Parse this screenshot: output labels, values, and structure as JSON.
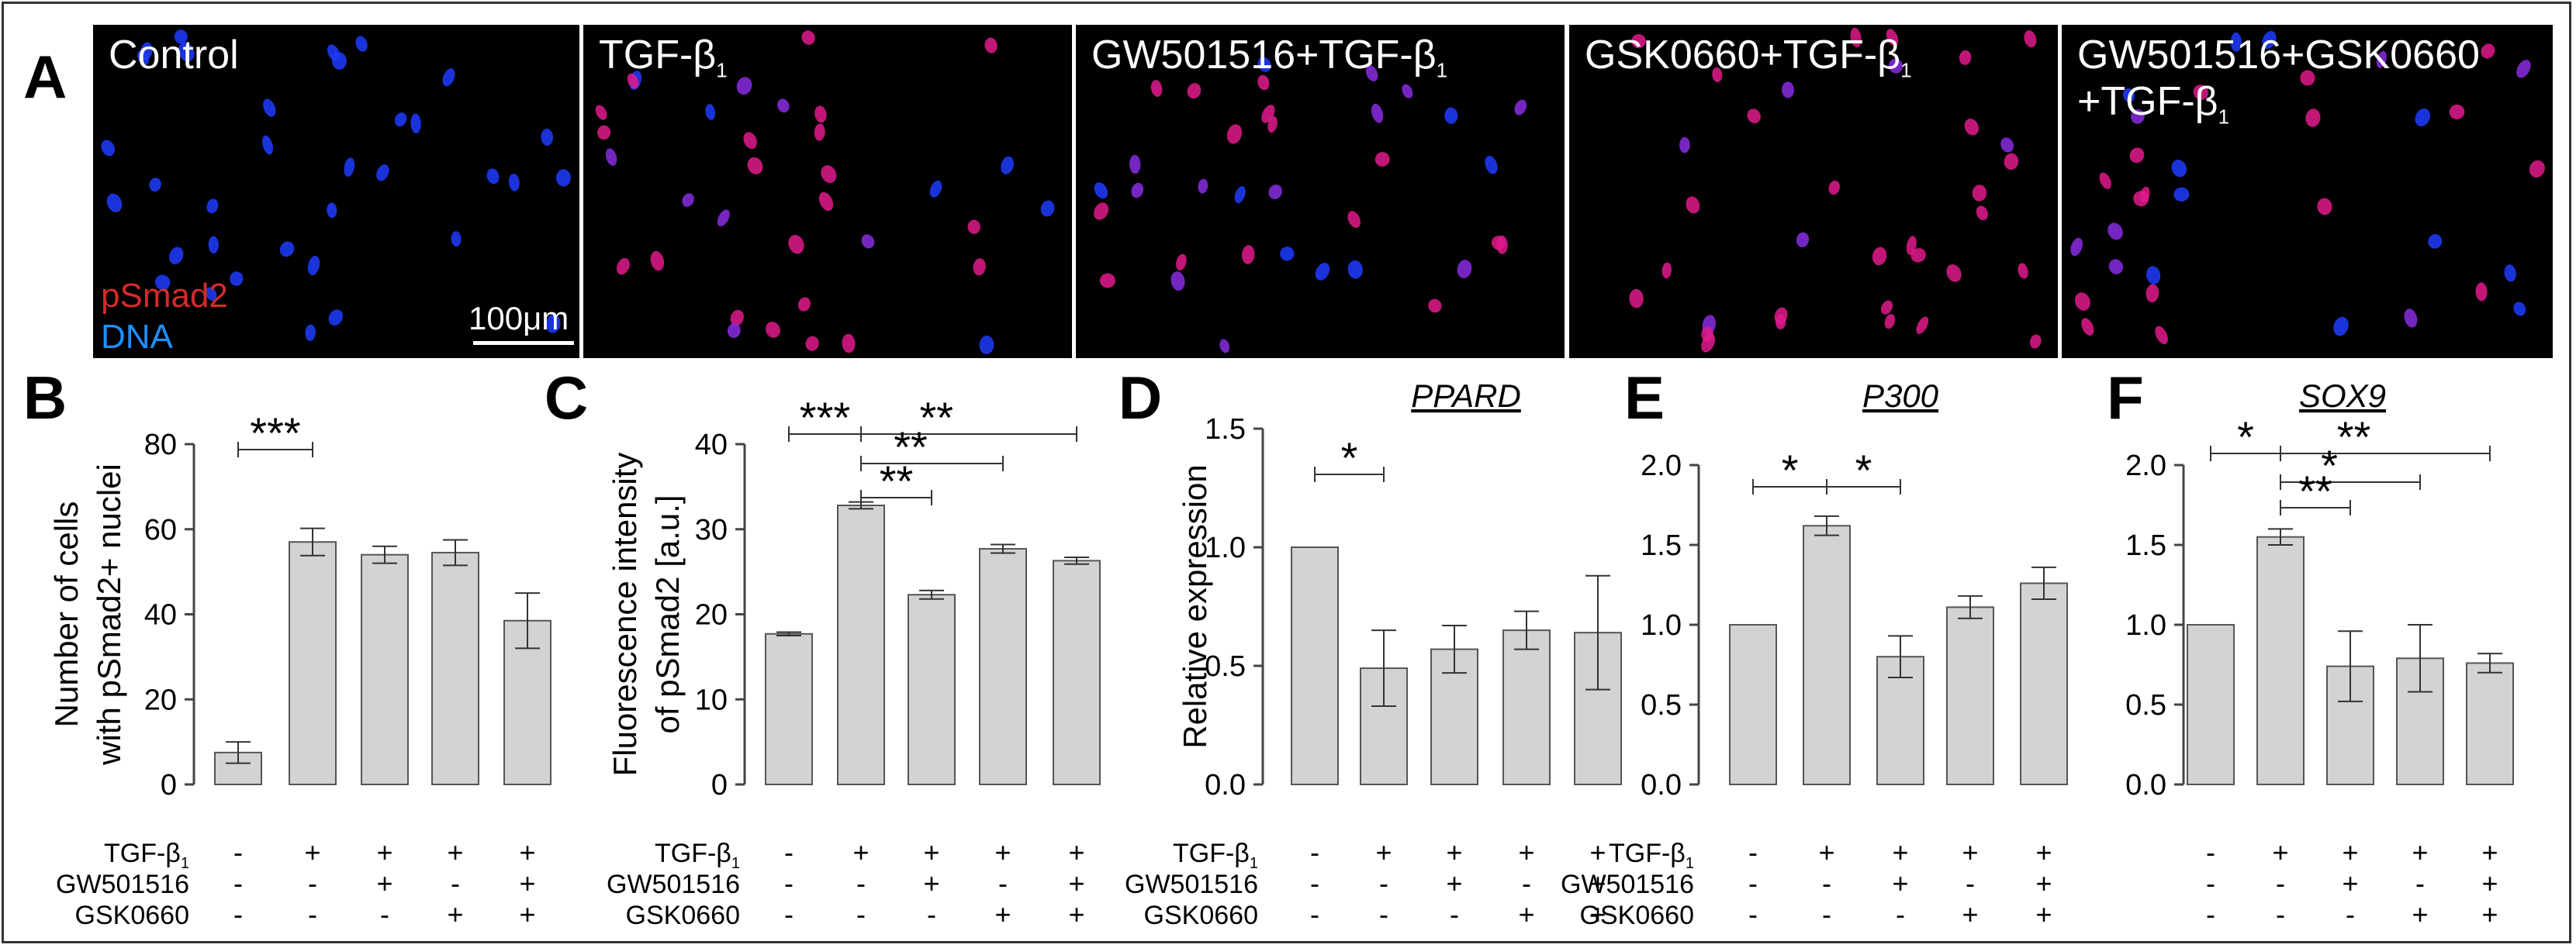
{
  "panel_a": {
    "letter": "A",
    "stain_labels": {
      "red": "pSmad2",
      "blue": "DNA"
    },
    "scale_bar": "100μm",
    "tiles": [
      {
        "label_lines": [
          [
            "Control",
            ""
          ]
        ],
        "nuclei": "blue"
      },
      {
        "label_lines": [
          [
            "TGF-β",
            "1"
          ]
        ],
        "nuclei": "mixed"
      },
      {
        "label_lines": [
          [
            "GW501516+TGF-β",
            "1"
          ]
        ],
        "nuclei": "mixed"
      },
      {
        "label_lines": [
          [
            "GSK0660+TGF-β",
            "1"
          ]
        ],
        "nuclei": "pink"
      },
      {
        "label_lines": [
          [
            "GW501516+GSK0660",
            ""
          ],
          [
            "+TGF-β",
            "1"
          ]
        ],
        "nuclei": "mixed"
      }
    ],
    "colors": {
      "nucleus_blue": "#1f3cff",
      "nucleus_pink": "#e01a8c",
      "nucleus_purple": "#8a2be2"
    }
  },
  "treatment_table": {
    "rows": [
      {
        "label": "TGF-β",
        "sub": "1",
        "signs": [
          "-",
          "+",
          "+",
          "+",
          "+"
        ]
      },
      {
        "label": "GW501516",
        "sub": "",
        "signs": [
          "-",
          "-",
          "+",
          "-",
          "+"
        ]
      },
      {
        "label": "GSK0660",
        "sub": "",
        "signs": [
          "-",
          "-",
          "-",
          "+",
          "+"
        ]
      }
    ]
  },
  "chart_data": [
    {
      "panel": "B",
      "type": "bar",
      "title": "",
      "ylabel_lines": [
        "Number of cells",
        "with pSmad2+ nuclei"
      ],
      "ylim": [
        0,
        80
      ],
      "yticks": [
        "0",
        "20",
        "40",
        "60",
        "80"
      ],
      "values": [
        7.5,
        57,
        54,
        54.5,
        38.5
      ],
      "errors": [
        2.5,
        3.2,
        2.0,
        3.0,
        6.5
      ],
      "bar_color": "#d3d3d3",
      "significance": [
        {
          "from": 0,
          "to": 1,
          "label": "***",
          "level": 0
        }
      ]
    },
    {
      "panel": "C",
      "type": "bar",
      "title": "",
      "ylabel_lines": [
        "Fluorescence intensity",
        "of pSmad2 [a.u.]"
      ],
      "ylim": [
        0,
        40
      ],
      "yticks": [
        "0",
        "10",
        "20",
        "30",
        "40"
      ],
      "values": [
        17.7,
        32.8,
        22.3,
        27.7,
        26.3
      ],
      "errors": [
        0.2,
        0.4,
        0.5,
        0.5,
        0.4
      ],
      "bar_color": "#d3d3d3",
      "significance": [
        {
          "from": 0,
          "to": 1,
          "label": "***",
          "level": 3
        },
        {
          "from": 1,
          "to": 4,
          "label": "**",
          "level": 3
        },
        {
          "from": 1,
          "to": 3,
          "label": "**",
          "level": 2
        },
        {
          "from": 1,
          "to": 2,
          "label": "**",
          "level": 1
        }
      ]
    },
    {
      "panel": "D",
      "type": "bar",
      "title": "PPARD",
      "ylabel_lines": [
        "Relative expression"
      ],
      "ylim": [
        0,
        1.5
      ],
      "yticks": [
        "0.0",
        "0.5",
        "1.0",
        "1.5"
      ],
      "values": [
        1.0,
        0.49,
        0.57,
        0.65,
        0.64
      ],
      "errors": [
        0,
        0.16,
        0.1,
        0.08,
        0.24
      ],
      "bar_color": "#d3d3d3",
      "significance": [
        {
          "from": 0,
          "to": 1,
          "label": "*",
          "level": 0
        }
      ]
    },
    {
      "panel": "E",
      "type": "bar",
      "title": "P300",
      "ylabel_lines": [],
      "ylim": [
        0,
        2.0
      ],
      "yticks": [
        "0.0",
        "0.5",
        "1.0",
        "1.5",
        "2.0"
      ],
      "values": [
        1.0,
        1.62,
        0.8,
        1.11,
        1.26
      ],
      "errors": [
        0,
        0.06,
        0.13,
        0.07,
        0.1
      ],
      "bar_color": "#d3d3d3",
      "significance": [
        {
          "from": 0,
          "to": 1,
          "label": "*",
          "level": 0
        },
        {
          "from": 1,
          "to": 2,
          "label": "*",
          "level": 0
        }
      ]
    },
    {
      "panel": "F",
      "type": "bar",
      "title": "SOX9",
      "ylabel_lines": [],
      "ylim": [
        0,
        2.0
      ],
      "yticks": [
        "0.0",
        "0.5",
        "1.0",
        "1.5",
        "2.0"
      ],
      "values": [
        1.0,
        1.55,
        0.74,
        0.79,
        0.76
      ],
      "errors": [
        0,
        0.05,
        0.22,
        0.21,
        0.06
      ],
      "bar_color": "#d3d3d3",
      "significance": [
        {
          "from": 0,
          "to": 1,
          "label": "*",
          "level": 3
        },
        {
          "from": 1,
          "to": 4,
          "label": "**",
          "level": 3
        },
        {
          "from": 1,
          "to": 3,
          "label": "*",
          "level": 2
        },
        {
          "from": 1,
          "to": 2,
          "label": "**",
          "level": 1
        }
      ]
    }
  ]
}
